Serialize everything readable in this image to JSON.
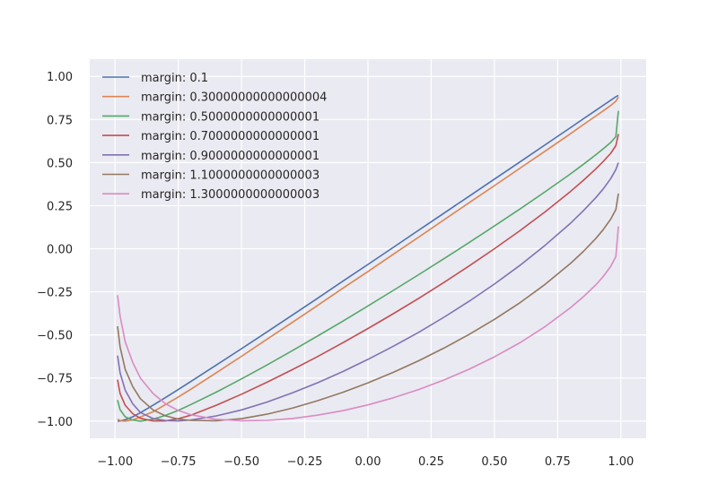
{
  "chart_data": {
    "type": "line",
    "title": "",
    "xlabel": "",
    "ylabel": "",
    "xlim": [
      -1.1,
      1.1
    ],
    "ylim": [
      -1.1,
      1.1
    ],
    "grid": true,
    "legend_position": "top-left",
    "x_ticks": [
      "−1.00",
      "−0.75",
      "−0.50",
      "−0.25",
      "0.00",
      "0.25",
      "0.50",
      "0.75",
      "1.00"
    ],
    "x_tick_values": [
      -1,
      -0.75,
      -0.5,
      -0.25,
      0,
      0.25,
      0.5,
      0.75,
      1
    ],
    "y_ticks": [
      "1.00",
      "0.75",
      "0.50",
      "0.25",
      "0.00",
      "−0.25",
      "−0.50",
      "−0.75",
      "−1.00"
    ],
    "y_tick_values": [
      1,
      0.75,
      0.5,
      0.25,
      0,
      -0.25,
      -0.5,
      -0.75,
      -1
    ],
    "x": [
      -0.99,
      -0.98,
      -0.96,
      -0.93,
      -0.9,
      -0.85,
      -0.8,
      -0.75,
      -0.7,
      -0.6,
      -0.5,
      -0.4,
      -0.3,
      -0.2,
      -0.1,
      0,
      0.1,
      0.2,
      0.3,
      0.4,
      0.5,
      0.6,
      0.7,
      0.8,
      0.85,
      0.9,
      0.93,
      0.96,
      0.98,
      0.99
    ],
    "series": [
      {
        "name": "margin: 0.1",
        "color": "#4c72b0",
        "values": [
          -1,
          -0.999,
          -0.992,
          -0.975,
          -0.951,
          -0.908,
          -0.863,
          -0.817,
          -0.77,
          -0.675,
          -0.58,
          -0.483,
          -0.386,
          -0.288,
          -0.189,
          -0.091,
          0.008,
          0.107,
          0.206,
          0.305,
          0.404,
          0.503,
          0.603,
          0.702,
          0.752,
          0.802,
          0.832,
          0.862,
          0.882,
          0.89
        ]
      },
      {
        "name": "margin: 0.30000000000000004",
        "color": "#dd8452",
        "values": [
          -0.988,
          -0.997,
          -1,
          -0.993,
          -0.976,
          -0.946,
          -0.904,
          -0.86,
          -0.815,
          -0.72,
          -0.624,
          -0.526,
          -0.428,
          -0.33,
          -0.23,
          -0.132,
          -0.032,
          0.067,
          0.167,
          0.267,
          0.366,
          0.466,
          0.566,
          0.667,
          0.718,
          0.769,
          0.8,
          0.831,
          0.856,
          0.88
        ]
      },
      {
        "name": "margin: 0.5000000000000001",
        "color": "#55a868",
        "values": [
          -0.878,
          -0.934,
          -0.975,
          -0.994,
          -1,
          -0.989,
          -0.967,
          -0.938,
          -0.904,
          -0.832,
          -0.755,
          -0.675,
          -0.592,
          -0.507,
          -0.421,
          -0.332,
          -0.242,
          -0.151,
          -0.058,
          0.036,
          0.132,
          0.23,
          0.33,
          0.434,
          0.488,
          0.544,
          0.58,
          0.617,
          0.65,
          0.8
        ]
      },
      {
        "name": "margin: 0.7000000000000001",
        "color": "#c44e52",
        "values": [
          -0.76,
          -0.84,
          -0.908,
          -0.957,
          -0.984,
          -0.999,
          -0.999,
          -0.986,
          -0.966,
          -0.908,
          -0.844,
          -0.775,
          -0.702,
          -0.626,
          -0.546,
          -0.463,
          -0.377,
          -0.288,
          -0.196,
          -0.1,
          0,
          0.104,
          0.214,
          0.332,
          0.395,
          0.462,
          0.506,
          0.554,
          0.598,
          0.665
        ]
      },
      {
        "name": "margin: 0.9000000000000001",
        "color": "#8172b3",
        "values": [
          -0.62,
          -0.72,
          -0.82,
          -0.9,
          -0.95,
          -0.985,
          -0.997,
          -0.999,
          -0.994,
          -0.97,
          -0.935,
          -0.89,
          -0.837,
          -0.778,
          -0.713,
          -0.642,
          -0.566,
          -0.485,
          -0.398,
          -0.305,
          -0.205,
          -0.097,
          0.02,
          0.147,
          0.218,
          0.295,
          0.347,
          0.407,
          0.46,
          0.5
        ]
      },
      {
        "name": "margin: 1.1000000000000003",
        "color": "#937860",
        "values": [
          -0.45,
          -0.57,
          -0.7,
          -0.8,
          -0.87,
          -0.935,
          -0.97,
          -0.988,
          -0.996,
          -0.998,
          -0.986,
          -0.96,
          -0.925,
          -0.882,
          -0.833,
          -0.778,
          -0.717,
          -0.65,
          -0.577,
          -0.497,
          -0.41,
          -0.314,
          -0.207,
          -0.086,
          -0.018,
          0.058,
          0.111,
          0.172,
          0.228,
          0.32
        ]
      },
      {
        "name": "margin: 1.3000000000000003",
        "color": "#da8bc3",
        "values": [
          -0.27,
          -0.39,
          -0.54,
          -0.66,
          -0.75,
          -0.84,
          -0.9,
          -0.938,
          -0.963,
          -0.99,
          -0.998,
          -0.996,
          -0.985,
          -0.966,
          -0.94,
          -0.906,
          -0.865,
          -0.817,
          -0.762,
          -0.699,
          -0.627,
          -0.546,
          -0.452,
          -0.343,
          -0.281,
          -0.211,
          -0.161,
          -0.102,
          -0.046,
          0.13
        ]
      }
    ]
  }
}
